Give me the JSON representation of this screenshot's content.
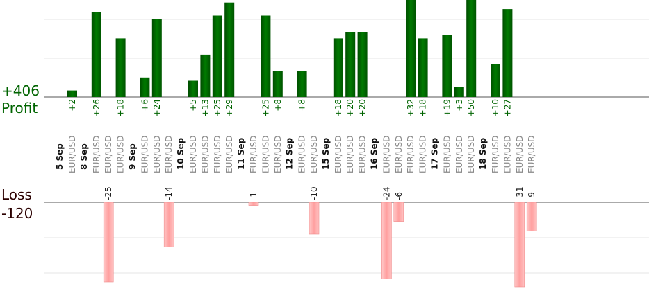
{
  "summary": {
    "profit_value": "+406",
    "profit_label": "Profit",
    "loss_label": "Loss",
    "loss_value": "-120"
  },
  "colors": {
    "profit_bar": "#006400",
    "profit_text": "#006400",
    "loss_bar": "#ffb0b0",
    "loss_text": "#222222",
    "date_text": "#111111",
    "pair_text": "#8a8a8a",
    "grid": "#e6e6e6",
    "axis": "#555555"
  },
  "chart_data": {
    "type": "bar",
    "unit_note": "trade results per trade, grouped by trading day",
    "days": [
      {
        "date": "5 Sep",
        "trades": [
          {
            "pair": "EUR/USD",
            "value": 2
          }
        ]
      },
      {
        "date": "8 Sep",
        "trades": [
          {
            "pair": "EUR/USD",
            "value": 26
          },
          {
            "pair": "EUR/USD",
            "value": -25
          },
          {
            "pair": "EUR/USD",
            "value": 18
          }
        ]
      },
      {
        "date": "9 Sep",
        "trades": [
          {
            "pair": "EUR/USD",
            "value": 6
          },
          {
            "pair": "EUR/USD",
            "value": 24
          },
          {
            "pair": "EUR/USD",
            "value": -14
          }
        ]
      },
      {
        "date": "10 Sep",
        "trades": [
          {
            "pair": "EUR/USD",
            "value": 5
          },
          {
            "pair": "EUR/USD",
            "value": 13
          },
          {
            "pair": "EUR/USD",
            "value": 25
          },
          {
            "pair": "EUR/USD",
            "value": 29
          }
        ]
      },
      {
        "date": "11 Sep",
        "trades": [
          {
            "pair": "EUR/USD",
            "value": -1
          },
          {
            "pair": "EUR/USD",
            "value": 25
          },
          {
            "pair": "EUR/USD",
            "value": 8
          }
        ]
      },
      {
        "date": "12 Sep",
        "trades": [
          {
            "pair": "EUR/USD",
            "value": 8
          },
          {
            "pair": "EUR/USD",
            "value": -10
          }
        ]
      },
      {
        "date": "15 Sep",
        "trades": [
          {
            "pair": "EUR/USD",
            "value": 18
          },
          {
            "pair": "EUR/USD",
            "value": 20
          },
          {
            "pair": "EUR/USD",
            "value": 20
          }
        ]
      },
      {
        "date": "16 Sep",
        "trades": [
          {
            "pair": "EUR/USD",
            "value": -24
          },
          {
            "pair": "EUR/USD",
            "value": -6
          },
          {
            "pair": "EUR/USD",
            "value": 32
          },
          {
            "pair": "EUR/USD",
            "value": 18
          }
        ]
      },
      {
        "date": "17 Sep",
        "trades": [
          {
            "pair": "EUR/USD",
            "value": 19
          },
          {
            "pair": "EUR/USD",
            "value": 3
          },
          {
            "pair": "EUR/USD",
            "value": 50
          }
        ]
      },
      {
        "date": "18 Sep",
        "trades": [
          {
            "pair": "EUR/USD",
            "value": 10
          },
          {
            "pair": "EUR/USD",
            "value": 27
          },
          {
            "pair": "EUR/USD",
            "value": -31
          },
          {
            "pair": "EUR/USD",
            "value": -9
          }
        ]
      }
    ],
    "profit_scale_max": 24,
    "loss_scale_max": 25,
    "grid": true
  }
}
